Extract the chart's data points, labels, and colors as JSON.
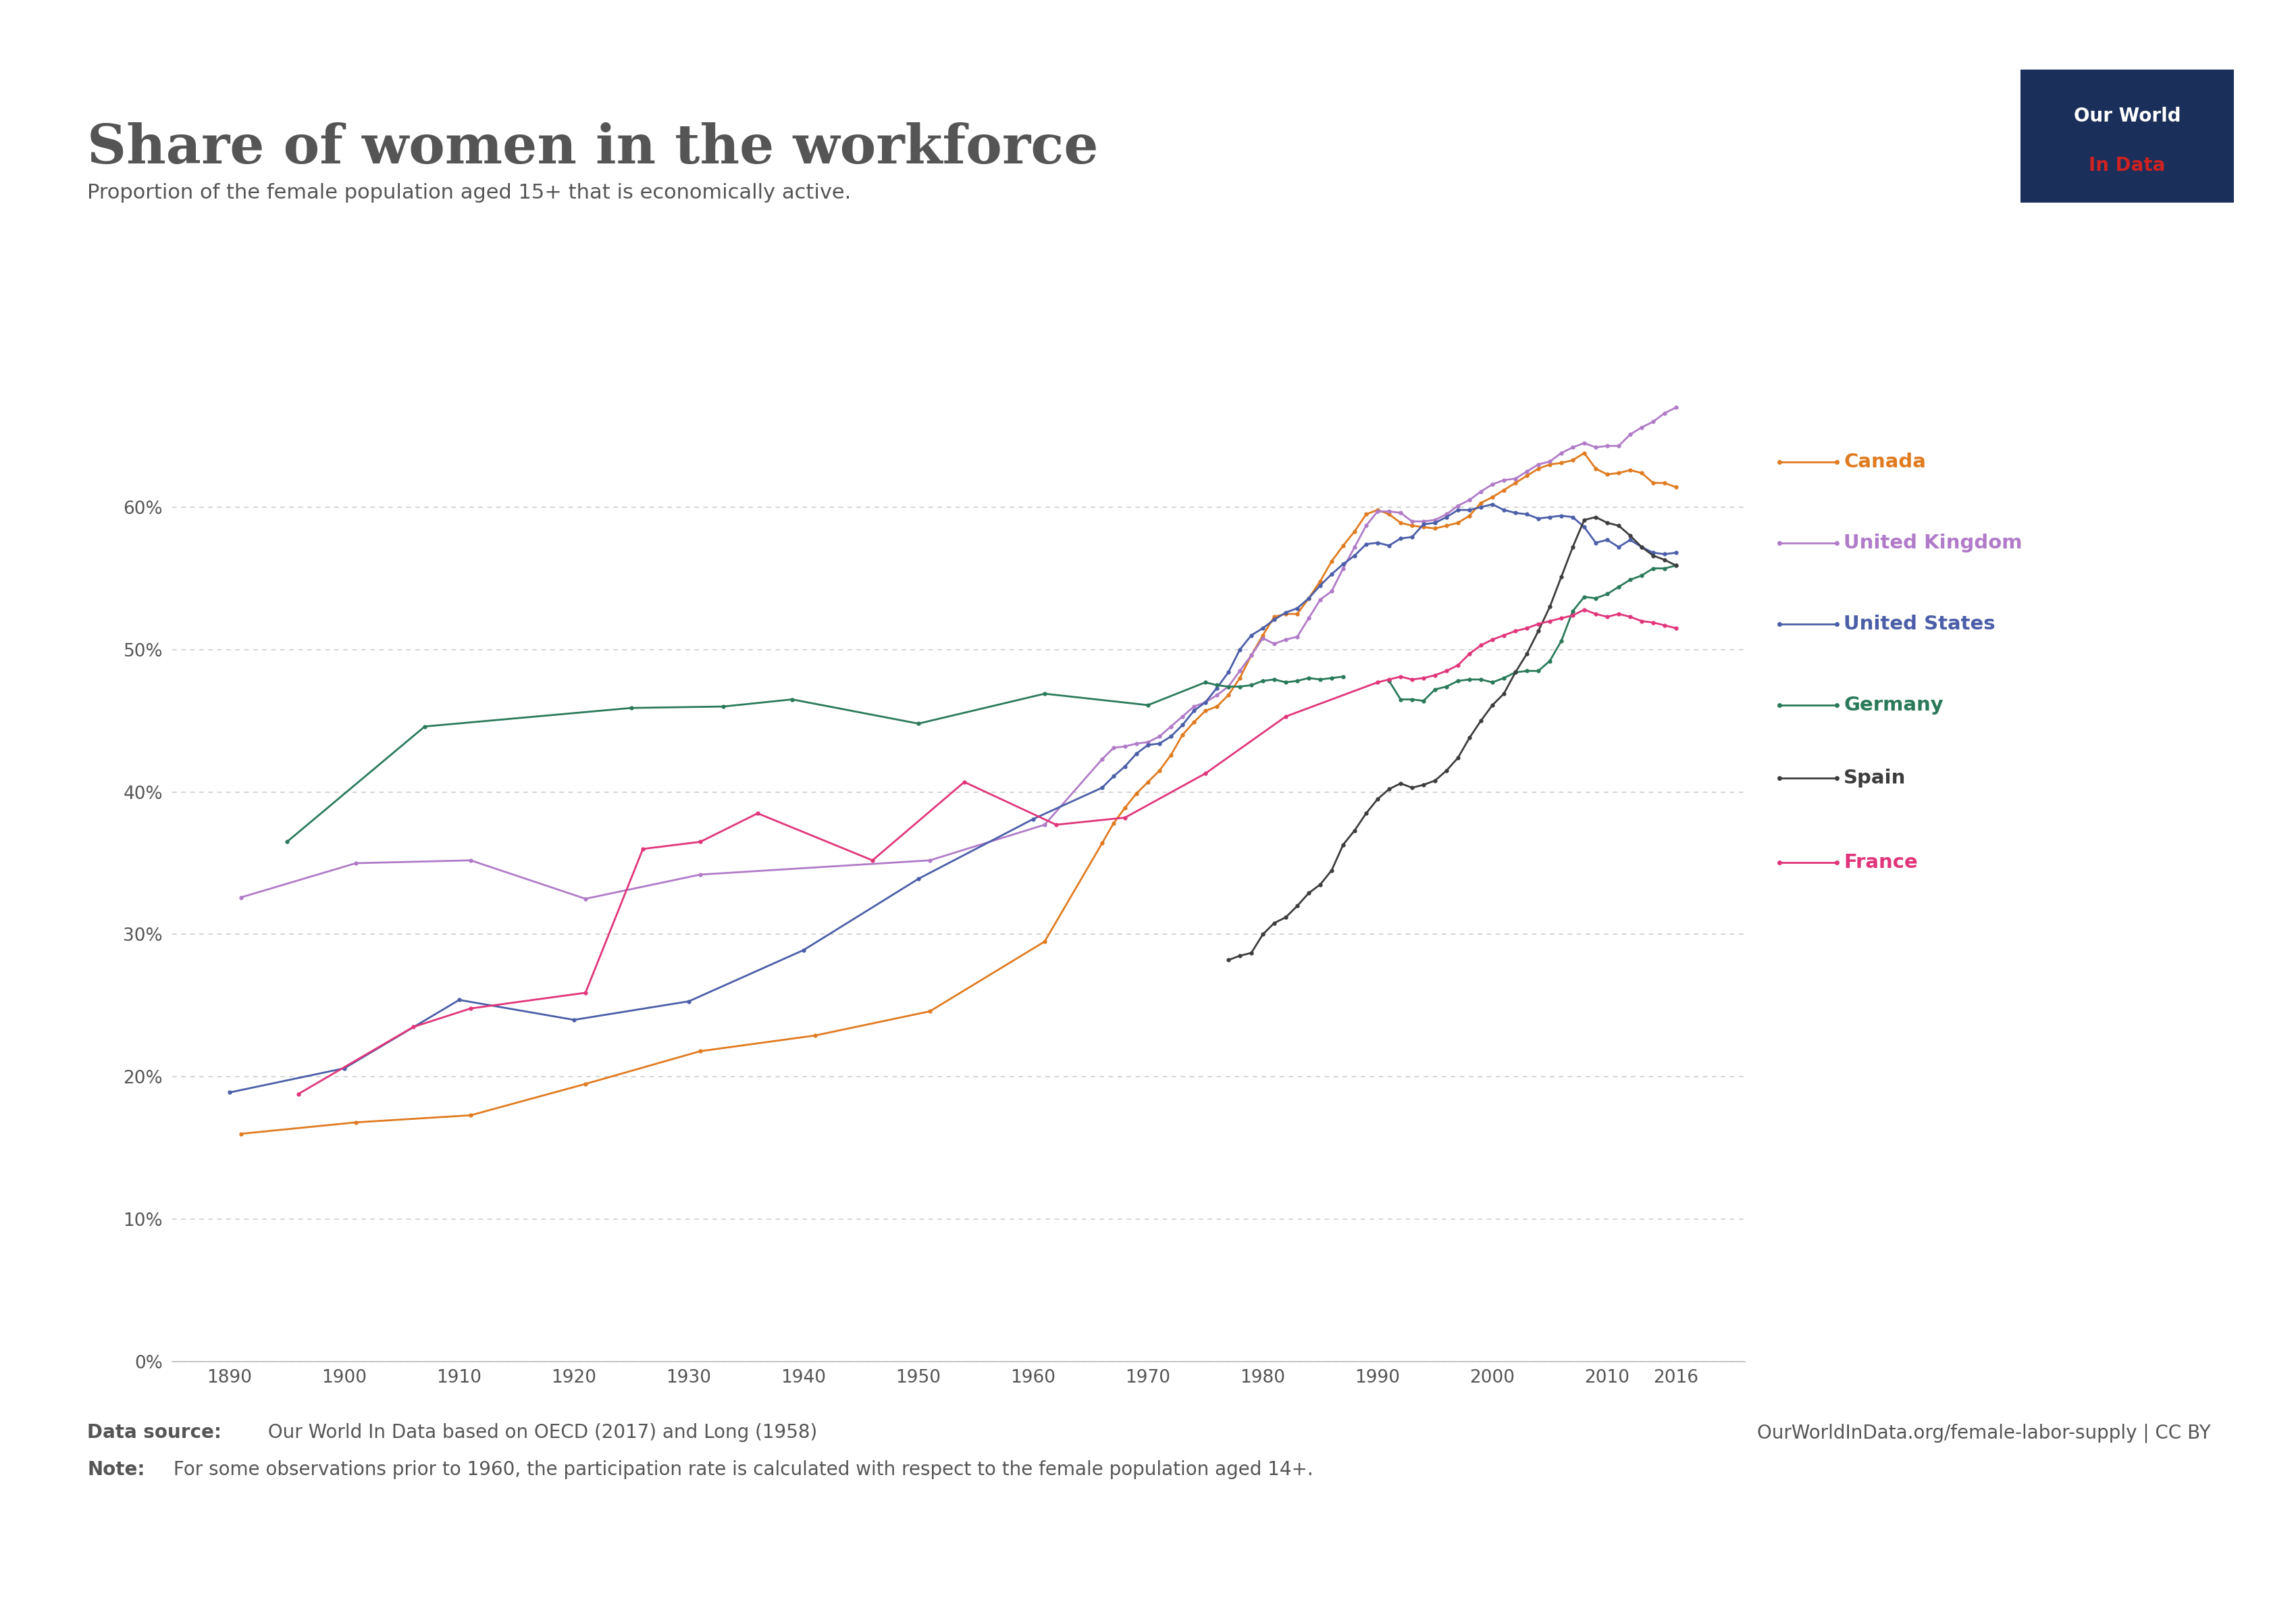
{
  "title": "Share of women in the workforce",
  "subtitle": "Proportion of the female population aged 15+ that is economically active.",
  "datasource_bold": "Data source:",
  "datasource_rest": " Our World In Data based on OECD (2017) and Long (1958)",
  "website": "OurWorldInData.org/female-labor-supply | CC BY",
  "note_bold": "Note:",
  "note_rest": " For some observations prior to 1960, the participation rate is calculated with respect to the female population aged 14+.",
  "logo_text1": "Our World",
  "logo_text2": "In Data",
  "countries": [
    "Canada",
    "United Kingdom",
    "United States",
    "Germany",
    "Spain",
    "France"
  ],
  "colors": {
    "Canada": "#E07B20",
    "United Kingdom": "#B07BC8",
    "United States": "#4B5EA8",
    "Germany": "#2A7A5A",
    "Spain": "#3D3D3D",
    "France": "#E0357A"
  },
  "Canada": {
    "years": [
      1891,
      1901,
      1911,
      1921,
      1931,
      1941,
      1951,
      1961,
      1966,
      1967,
      1968,
      1969,
      1970,
      1971,
      1972,
      1973,
      1974,
      1975,
      1976,
      1977,
      1978,
      1979,
      1980,
      1981,
      1982,
      1983,
      1984,
      1985,
      1986,
      1987,
      1988,
      1989,
      1990,
      1991,
      1992,
      1993,
      1994,
      1995,
      1996,
      1997,
      1998,
      1999,
      2000,
      2001,
      2002,
      2003,
      2004,
      2005,
      2006,
      2007,
      2008,
      2009,
      2010,
      2011,
      2012,
      2013,
      2014,
      2015,
      2016
    ],
    "values": [
      16.0,
      16.8,
      17.3,
      19.5,
      21.8,
      22.9,
      24.6,
      29.5,
      36.4,
      37.8,
      38.9,
      39.9,
      40.7,
      41.5,
      42.6,
      44.0,
      44.9,
      45.7,
      46.0,
      46.8,
      48.0,
      49.6,
      51.0,
      52.3,
      52.5,
      52.5,
      53.6,
      54.8,
      56.2,
      57.3,
      58.3,
      59.5,
      59.8,
      59.5,
      58.9,
      58.7,
      58.6,
      58.5,
      58.7,
      58.9,
      59.4,
      60.3,
      60.7,
      61.2,
      61.7,
      62.2,
      62.7,
      63.0,
      63.1,
      63.3,
      63.8,
      62.7,
      62.3,
      62.4,
      62.6,
      62.4,
      61.7,
      61.7,
      61.4
    ]
  },
  "United Kingdom": {
    "years": [
      1891,
      1901,
      1911,
      1921,
      1931,
      1951,
      1961,
      1966,
      1967,
      1968,
      1969,
      1970,
      1971,
      1972,
      1973,
      1974,
      1975,
      1976,
      1977,
      1978,
      1979,
      1980,
      1981,
      1982,
      1983,
      1984,
      1985,
      1986,
      1987,
      1988,
      1989,
      1990,
      1991,
      1992,
      1993,
      1994,
      1995,
      1996,
      1997,
      1998,
      1999,
      2000,
      2001,
      2002,
      2003,
      2004,
      2005,
      2006,
      2007,
      2008,
      2009,
      2010,
      2011,
      2012,
      2013,
      2014,
      2015,
      2016
    ],
    "values": [
      32.6,
      35.0,
      35.2,
      32.5,
      34.2,
      35.2,
      37.7,
      42.3,
      43.1,
      43.2,
      43.4,
      43.5,
      43.9,
      44.6,
      45.3,
      46.0,
      46.3,
      46.8,
      47.4,
      48.5,
      49.6,
      50.8,
      50.4,
      50.7,
      50.9,
      52.2,
      53.5,
      54.1,
      55.7,
      57.2,
      58.7,
      59.7,
      59.7,
      59.6,
      59.0,
      59.0,
      59.1,
      59.5,
      60.1,
      60.5,
      61.1,
      61.6,
      61.9,
      62.0,
      62.5,
      63.0,
      63.2,
      63.8,
      64.2,
      64.5,
      64.2,
      64.3,
      64.3,
      65.1,
      65.6,
      66.0,
      66.6,
      67.0
    ]
  },
  "United States": {
    "years": [
      1890,
      1900,
      1910,
      1920,
      1930,
      1940,
      1950,
      1960,
      1966,
      1967,
      1968,
      1969,
      1970,
      1971,
      1972,
      1973,
      1974,
      1975,
      1976,
      1977,
      1978,
      1979,
      1980,
      1981,
      1982,
      1983,
      1984,
      1985,
      1986,
      1987,
      1988,
      1989,
      1990,
      1991,
      1992,
      1993,
      1994,
      1995,
      1996,
      1997,
      1998,
      1999,
      2000,
      2001,
      2002,
      2003,
      2004,
      2005,
      2006,
      2007,
      2008,
      2009,
      2010,
      2011,
      2012,
      2013,
      2014,
      2015,
      2016
    ],
    "values": [
      18.9,
      20.6,
      25.4,
      24.0,
      25.3,
      28.9,
      33.9,
      38.1,
      40.3,
      41.1,
      41.8,
      42.7,
      43.3,
      43.4,
      43.9,
      44.7,
      45.7,
      46.3,
      47.3,
      48.4,
      50.0,
      51.0,
      51.5,
      52.1,
      52.6,
      52.9,
      53.6,
      54.5,
      55.3,
      56.0,
      56.6,
      57.4,
      57.5,
      57.3,
      57.8,
      57.9,
      58.8,
      58.9,
      59.3,
      59.8,
      59.8,
      60.0,
      60.2,
      59.8,
      59.6,
      59.5,
      59.2,
      59.3,
      59.4,
      59.3,
      58.6,
      57.5,
      57.7,
      57.2,
      57.7,
      57.2,
      56.8,
      56.7,
      56.8
    ]
  },
  "Germany": {
    "years": [
      1895,
      1907,
      1925,
      1933,
      1939,
      1950,
      1961,
      1970,
      1975,
      1976,
      1977,
      1978,
      1979,
      1980,
      1981,
      1982,
      1983,
      1984,
      1985,
      1986,
      1987,
      1991,
      1992,
      1993,
      1994,
      1995,
      1996,
      1997,
      1998,
      1999,
      2000,
      2001,
      2002,
      2003,
      2004,
      2005,
      2006,
      2007,
      2008,
      2009,
      2010,
      2011,
      2012,
      2013,
      2014,
      2015,
      2016
    ],
    "values": [
      36.5,
      44.6,
      45.9,
      46.0,
      46.5,
      44.8,
      46.9,
      46.1,
      47.7,
      47.5,
      47.4,
      47.4,
      47.5,
      47.8,
      47.9,
      47.7,
      47.8,
      48.0,
      47.9,
      48.0,
      48.1,
      47.8,
      46.5,
      46.5,
      46.4,
      47.2,
      47.4,
      47.8,
      47.9,
      47.9,
      47.7,
      48.0,
      48.4,
      48.5,
      48.5,
      49.2,
      50.6,
      52.7,
      53.7,
      53.6,
      53.9,
      54.4,
      54.9,
      55.2,
      55.7,
      55.7,
      55.9
    ]
  },
  "Germany_gap": {
    "years_before": [
      1895,
      1907,
      1925,
      1933,
      1939,
      1950,
      1961,
      1970,
      1975,
      1976,
      1977,
      1978,
      1979,
      1980,
      1981,
      1982,
      1983,
      1984,
      1985,
      1986,
      1987
    ],
    "values_before": [
      36.5,
      44.6,
      45.9,
      46.0,
      46.5,
      44.8,
      46.9,
      46.1,
      47.7,
      47.5,
      47.4,
      47.4,
      47.5,
      47.8,
      47.9,
      47.7,
      47.8,
      48.0,
      47.9,
      48.0,
      48.1
    ],
    "years_after": [
      1991,
      1992,
      1993,
      1994,
      1995,
      1996,
      1997,
      1998,
      1999,
      2000,
      2001,
      2002,
      2003,
      2004,
      2005,
      2006,
      2007,
      2008,
      2009,
      2010,
      2011,
      2012,
      2013,
      2014,
      2015,
      2016
    ],
    "values_after": [
      47.8,
      46.5,
      46.5,
      46.4,
      47.2,
      47.4,
      47.8,
      47.9,
      47.9,
      47.7,
      48.0,
      48.4,
      48.5,
      48.5,
      49.2,
      50.6,
      52.7,
      53.7,
      53.6,
      53.9,
      54.4,
      54.9,
      55.2,
      55.7,
      55.7,
      55.9
    ]
  },
  "Spain": {
    "years": [
      1977,
      1978,
      1979,
      1980,
      1981,
      1982,
      1983,
      1984,
      1985,
      1986,
      1987,
      1988,
      1989,
      1990,
      1991,
      1992,
      1993,
      1994,
      1995,
      1996,
      1997,
      1998,
      1999,
      2000,
      2001,
      2002,
      2003,
      2004,
      2005,
      2006,
      2007,
      2008,
      2009,
      2010,
      2011,
      2012,
      2013,
      2014,
      2015,
      2016
    ],
    "values": [
      28.2,
      28.5,
      28.7,
      30.0,
      30.8,
      31.2,
      32.0,
      32.9,
      33.5,
      34.5,
      36.3,
      37.3,
      38.5,
      39.5,
      40.2,
      40.6,
      40.3,
      40.5,
      40.8,
      41.5,
      42.4,
      43.8,
      45.0,
      46.1,
      46.9,
      48.4,
      49.7,
      51.3,
      53.0,
      55.1,
      57.2,
      59.1,
      59.3,
      58.9,
      58.7,
      58.0,
      57.2,
      56.6,
      56.3,
      55.9
    ]
  },
  "France": {
    "years": [
      1896,
      1906,
      1911,
      1921,
      1926,
      1931,
      1936,
      1946,
      1954,
      1962,
      1968,
      1975,
      1982,
      1990,
      1991,
      1992,
      1993,
      1994,
      1995,
      1996,
      1997,
      1998,
      1999,
      2000,
      2001,
      2002,
      2003,
      2004,
      2005,
      2006,
      2007,
      2008,
      2009,
      2010,
      2011,
      2012,
      2013,
      2014,
      2015,
      2016
    ],
    "values": [
      18.8,
      23.5,
      24.8,
      25.9,
      36.0,
      36.5,
      38.5,
      35.2,
      40.7,
      37.7,
      38.2,
      41.3,
      45.3,
      47.7,
      47.9,
      48.1,
      47.9,
      48.0,
      48.2,
      48.5,
      48.9,
      49.7,
      50.3,
      50.7,
      51.0,
      51.3,
      51.5,
      51.8,
      52.0,
      52.2,
      52.4,
      52.8,
      52.5,
      52.3,
      52.5,
      52.3,
      52.0,
      51.9,
      51.7,
      51.5
    ]
  },
  "xlim": [
    1885,
    2022
  ],
  "ylim": [
    0,
    70
  ],
  "yticks": [
    0,
    10,
    20,
    30,
    40,
    50,
    60
  ],
  "xticks": [
    1890,
    1900,
    1910,
    1920,
    1930,
    1940,
    1950,
    1960,
    1970,
    1980,
    1990,
    2000,
    2010,
    2016
  ],
  "background_color": "#FFFFFF",
  "grid_color": "#CCCCCC",
  "title_color": "#555555",
  "text_color": "#555555"
}
